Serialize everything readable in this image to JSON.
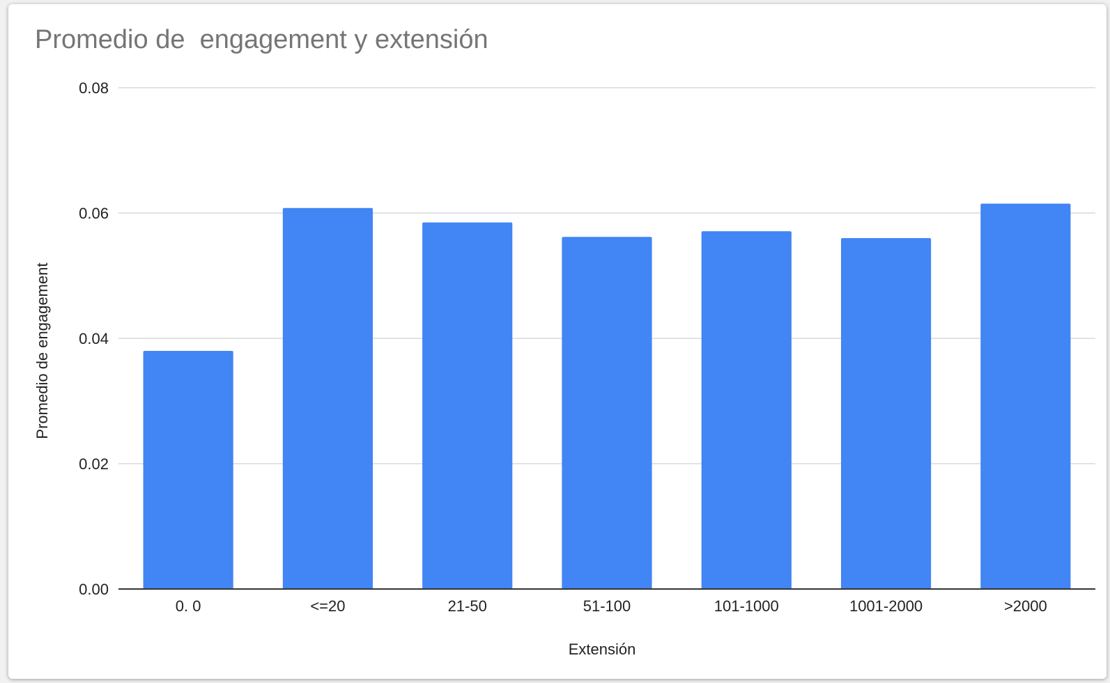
{
  "chart_data": {
    "type": "bar",
    "title": "Promedio de  engagement y extensión",
    "xlabel": "Extensión",
    "ylabel": "Promedio de  engagement",
    "categories": [
      "0. 0",
      "<=20",
      "21-50",
      "51-100",
      "101-1000",
      "1001-2000",
      ">2000"
    ],
    "series": [
      {
        "values": [
          0.038,
          0.0608,
          0.0585,
          0.0562,
          0.0571,
          0.056,
          0.0615
        ],
        "color": "#4285f4"
      }
    ],
    "ylim": [
      0,
      0.08
    ],
    "yticks": [
      "0.00",
      "0.02",
      "0.04",
      "0.06",
      "0.08"
    ],
    "grid": true,
    "legend": "none"
  }
}
